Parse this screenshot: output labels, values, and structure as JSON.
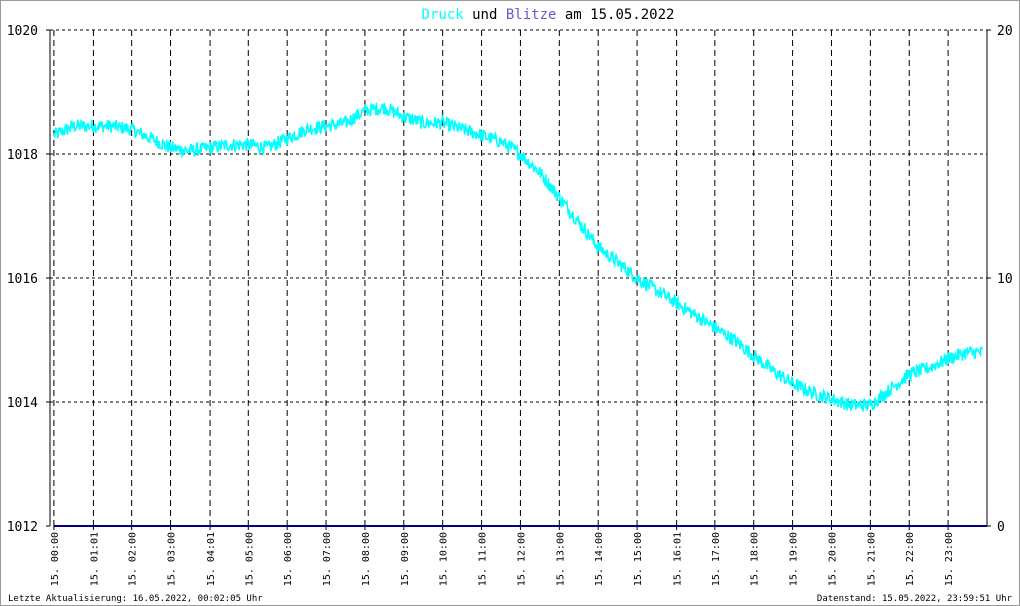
{
  "title": {
    "part1": "Druck",
    "part2": " und ",
    "part3": "Blitze",
    "part4": " am 15.05.2022"
  },
  "footer": {
    "left": "Letzte Aktualisierung: 16.05.2022, 00:02:05 Uhr",
    "right": "Datenstand: 15.05.2022, 23:59:51 Uhr"
  },
  "colors": {
    "background": "#ffffff",
    "frame": "#999999",
    "grid": "#000000",
    "pressure": "#00ffff",
    "lightning": "#000080",
    "title_pressure": "#00ffff",
    "title_lightning": "#6a5acd",
    "text": "#000000"
  },
  "chart_data": {
    "type": "line",
    "title": "Druck und Blitze am 15.05.2022",
    "y_left": {
      "ticks": [
        1012,
        1014,
        1016,
        1018,
        1020
      ],
      "ylim": [
        1012,
        1020
      ]
    },
    "y_right": {
      "ticks": [
        0,
        10,
        20
      ],
      "ylim": [
        0,
        20
      ]
    },
    "x_ticks": [
      "15. 00:00",
      "15. 01:01",
      "15. 02:00",
      "15. 03:00",
      "15. 04:01",
      "15. 05:00",
      "15. 06:00",
      "15. 07:00",
      "15. 08:00",
      "15. 09:00",
      "15. 10:00",
      "15. 11:00",
      "15. 12:00",
      "15. 13:00",
      "15. 14:00",
      "15. 15:00",
      "15. 16:01",
      "15. 17:00",
      "15. 18:00",
      "15. 19:00",
      "15. 20:00",
      "15. 21:00",
      "15. 22:00",
      "15. 23:00"
    ],
    "x_tick_hours": [
      0,
      1.017,
      2,
      3,
      4.017,
      5,
      6,
      7,
      8,
      9,
      10,
      11,
      12,
      13,
      14,
      15,
      16.017,
      17,
      18,
      19,
      20,
      21,
      22,
      23
    ],
    "xlim": [
      -0.1,
      24
    ],
    "grid": true,
    "series": [
      {
        "name": "Druck",
        "axis": "left",
        "x_hours": [
          0,
          0.5,
          1,
          1.5,
          2,
          2.5,
          3,
          3.5,
          4,
          4.5,
          5,
          5.5,
          6,
          6.5,
          7,
          7.5,
          8,
          8.5,
          9,
          9.5,
          10,
          10.5,
          11,
          11.5,
          12,
          12.5,
          13,
          13.5,
          14,
          14.5,
          15,
          15.5,
          16,
          16.5,
          17,
          17.5,
          18,
          18.5,
          19,
          19.5,
          20,
          20.5,
          21,
          21.5,
          22,
          22.5,
          23,
          23.5,
          23.9
        ],
        "values": [
          1018.3,
          1018.45,
          1018.45,
          1018.45,
          1018.4,
          1018.25,
          1018.1,
          1018.05,
          1018.1,
          1018.15,
          1018.15,
          1018.1,
          1018.25,
          1018.4,
          1018.45,
          1018.5,
          1018.7,
          1018.75,
          1018.6,
          1018.5,
          1018.5,
          1018.4,
          1018.3,
          1018.2,
          1018.0,
          1017.7,
          1017.3,
          1016.9,
          1016.5,
          1016.25,
          1016.0,
          1015.8,
          1015.6,
          1015.4,
          1015.2,
          1015.0,
          1014.75,
          1014.5,
          1014.3,
          1014.15,
          1014.05,
          1013.95,
          1013.95,
          1014.2,
          1014.45,
          1014.55,
          1014.7,
          1014.8,
          1014.8
        ]
      },
      {
        "name": "Blitze",
        "axis": "right",
        "x_hours": [
          0,
          24
        ],
        "values": [
          0,
          0
        ]
      }
    ]
  }
}
